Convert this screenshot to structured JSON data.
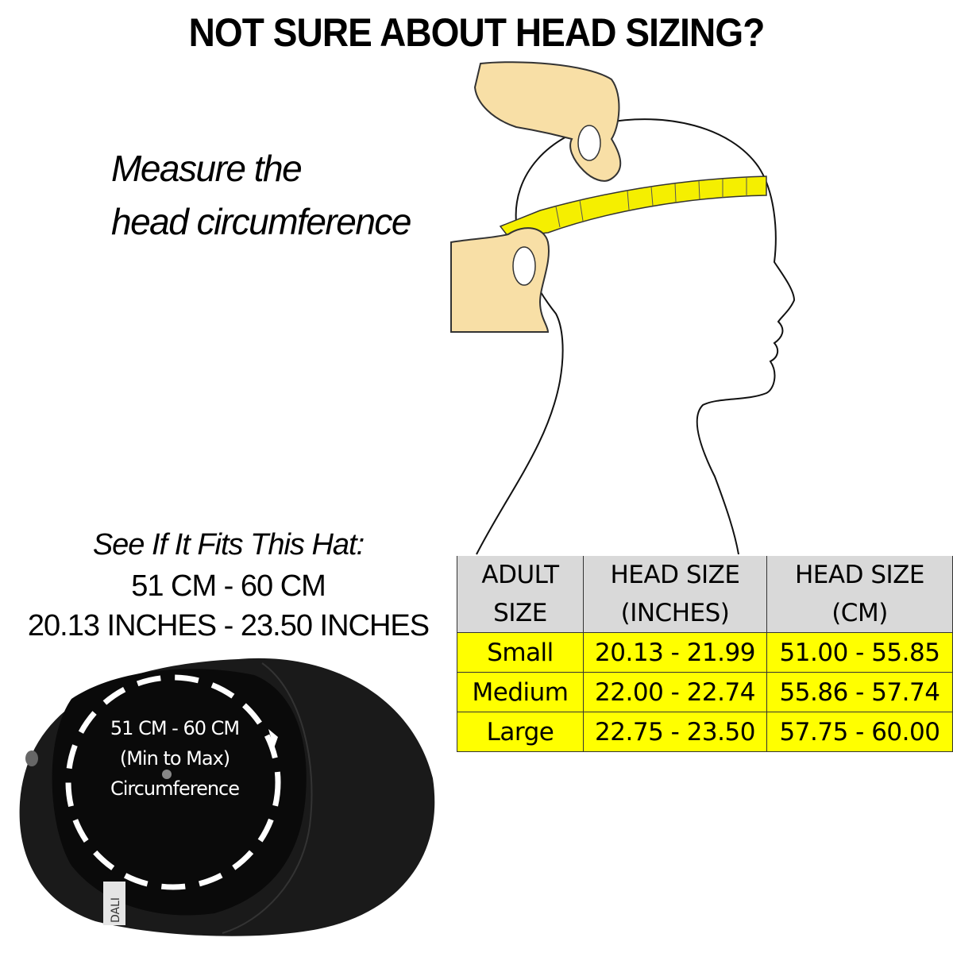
{
  "title": "NOT SURE ABOUT HEAD SIZING?",
  "instruction": {
    "line1": "Measure the",
    "line2": "head circumference"
  },
  "hat_fit": {
    "heading": "See If It Fits This Hat:",
    "cm_range": "51 CM - 60 CM",
    "inch_range": "20.13 INCHES -  23.50 INCHES"
  },
  "hat_image": {
    "label_line1": "51 CM - 60 CM",
    "label_line2": "(Min to Max)",
    "label_line3": "Circumference",
    "brand_tag": "DALI"
  },
  "size_table": {
    "headers": [
      {
        "line1": "ADULT",
        "line2": "SIZE"
      },
      {
        "line1": "HEAD SIZE",
        "line2": "(INCHES)"
      },
      {
        "line1": "HEAD SIZE",
        "line2": "(CM)"
      }
    ],
    "rows": [
      {
        "size": "Small",
        "inches": "20.13 - 21.99",
        "cm": "51.00 - 55.85"
      },
      {
        "size": "Medium",
        "inches": "22.00 - 22.74",
        "cm": "55.86 - 57.74"
      },
      {
        "size": "Large",
        "inches": "22.75 - 23.50",
        "cm": "57.75 - 60.00"
      }
    ],
    "header_color": "#d9d9d9",
    "row_color": "#ffff00"
  },
  "colors": {
    "tape": "#f5ef00",
    "hand": "#f8dfa6",
    "hat": "#0c0c0c"
  }
}
